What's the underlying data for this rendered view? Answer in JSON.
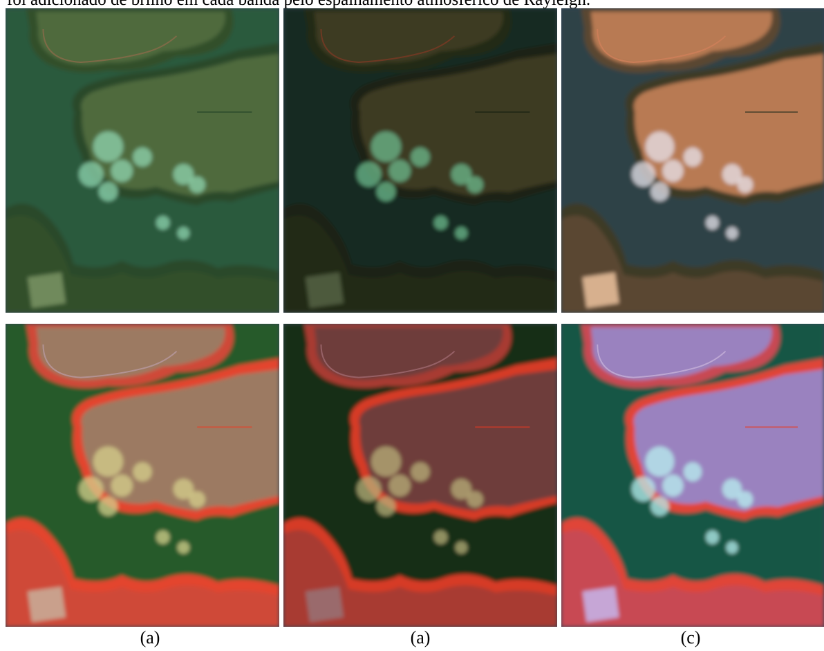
{
  "text": {
    "top_line": "foi adicionado de brilho em cada banda pelo espalhamento atmosférico de Rayleigh."
  },
  "figure": {
    "captions": [
      "(a)",
      "(a)",
      "(c)"
    ],
    "panels": [
      {
        "row": "top",
        "style": "true-color-green-tint",
        "colors": {
          "water": "#2b5a3e",
          "field": "#4f6a3c",
          "veg": "#33502c",
          "cloud": "#8fd6b0",
          "edge": "#29492a",
          "track": "#8a6a4a",
          "square": "#6f8a5c"
        }
      },
      {
        "row": "top",
        "style": "true-color-dark",
        "colors": {
          "water": "#132b22",
          "field": "#3d3a22",
          "veg": "#232a16",
          "cloud": "#6dbb8e",
          "edge": "#1b2413",
          "track": "#7a3a24",
          "square": "#4d5a3c"
        }
      },
      {
        "row": "top",
        "style": "true-color-corrected",
        "colors": {
          "water": "#2f4346",
          "field": "#b87a52",
          "veg": "#5a4630",
          "cloud": "#e8e4ee",
          "edge": "#3d3b26",
          "track": "#d0805a",
          "square": "#d7b08e"
        }
      },
      {
        "row": "bottom",
        "style": "false-color",
        "colors": {
          "water": "#275a2b",
          "field": "#9c7a62",
          "veg": "#cf4a38",
          "cloud": "#d6d08c",
          "edge": "#e3452d",
          "track": "#b89aa0",
          "square": "#c9a08c"
        }
      },
      {
        "row": "bottom",
        "style": "false-color-dark",
        "colors": {
          "water": "#162f18",
          "field": "#6e3c3a",
          "veg": "#a83a30",
          "cloud": "#b8b07a",
          "edge": "#d63a26",
          "track": "#a06a72",
          "square": "#9a6a6c"
        }
      },
      {
        "row": "bottom",
        "style": "false-color-corrected",
        "colors": {
          "water": "#175645",
          "field": "#9a82bf",
          "veg": "#c84a52",
          "cloud": "#b8f0f0",
          "edge": "#e04437",
          "track": "#c6b0d8",
          "square": "#c6a6d6"
        }
      }
    ]
  }
}
